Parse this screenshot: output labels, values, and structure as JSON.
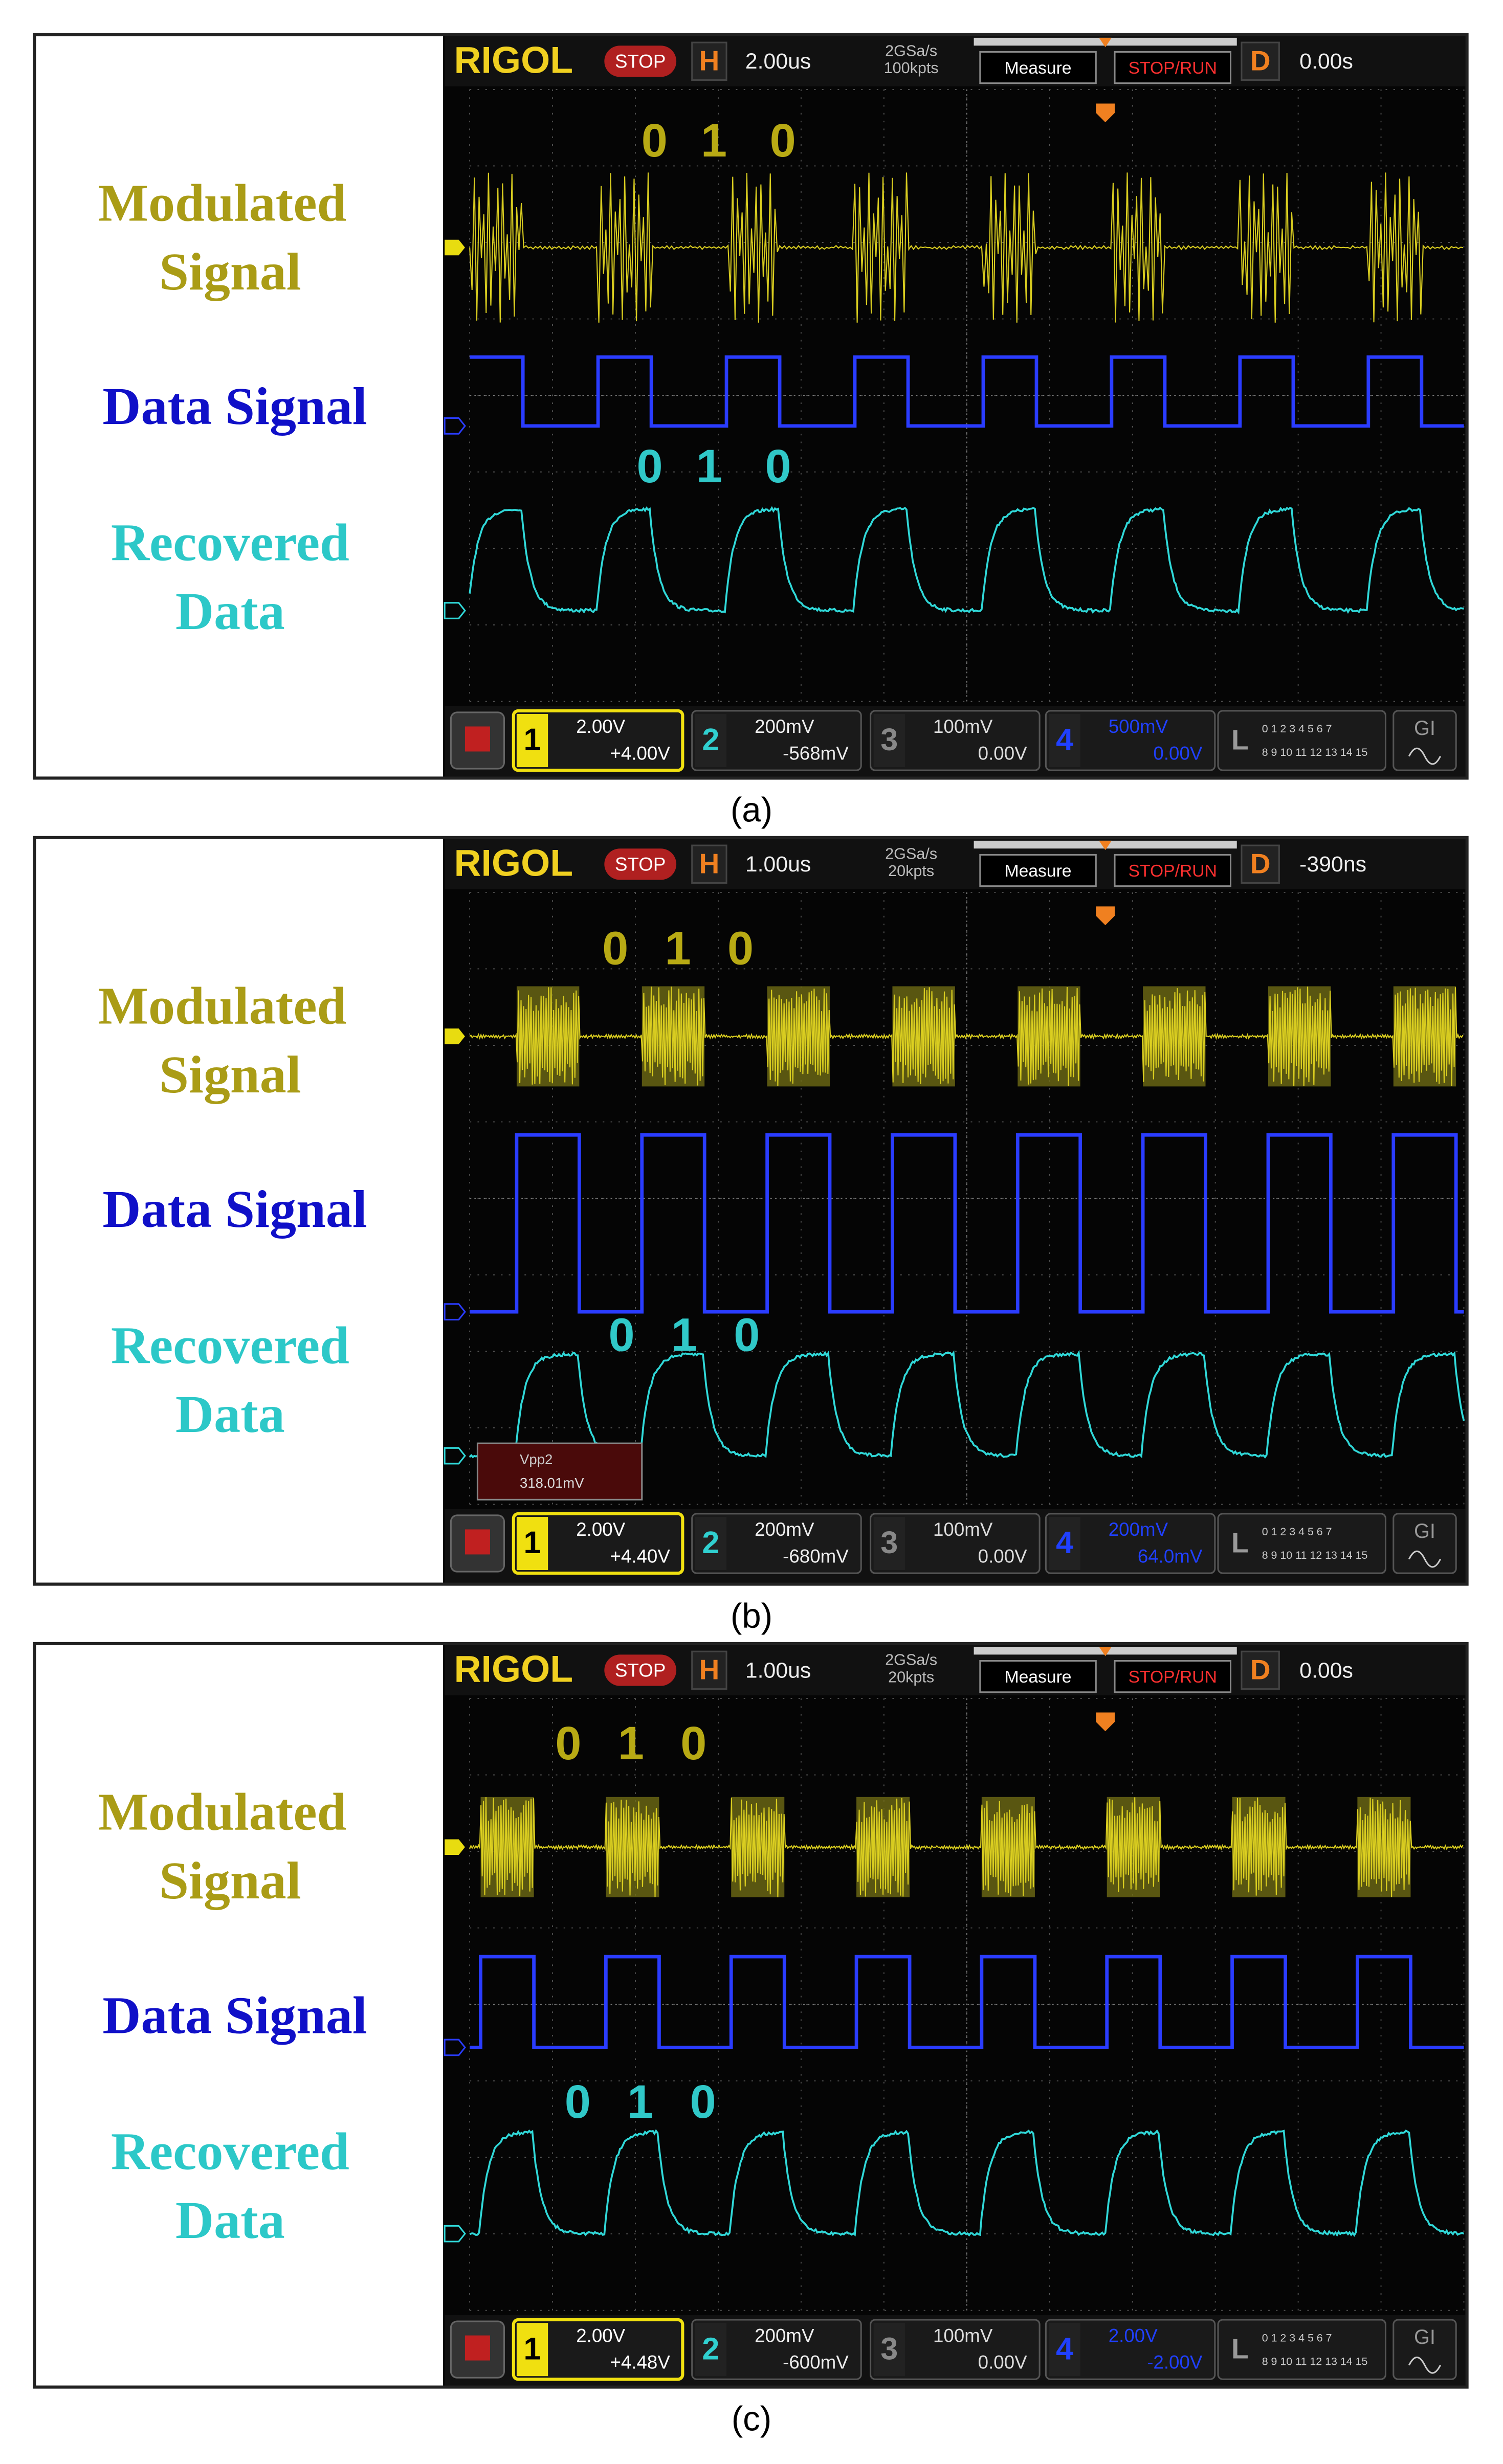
{
  "panels": [
    {
      "caption": "(a)",
      "labels": {
        "modulated": [
          "Modulated",
          "Signal"
        ],
        "data": "Data Signal",
        "recovered": [
          "Recovered",
          "Data"
        ]
      },
      "scope": {
        "brand": "RIGOL",
        "status": "STOP",
        "h_key": "H",
        "timebase": "2.00us",
        "rate": "2GSa/s",
        "points": "100kpts",
        "measure": "Measure",
        "run": "STOP/RUN",
        "d_key": "D",
        "delay": "0.00s",
        "channels": [
          {
            "num": "1",
            "scale": "2.00V",
            "offset": "+4.00V"
          },
          {
            "num": "2",
            "scale": "200mV",
            "offset": "-568mV"
          },
          {
            "num": "3",
            "scale": "100mV",
            "offset": "0.00V"
          },
          {
            "num": "4",
            "scale": "500mV",
            "offset": "0.00V"
          }
        ],
        "logic": "L",
        "logic_bits": [
          "0 1 2 3  4 5 6 7",
          "8 9 10 11 12 13 14 15"
        ],
        "menu": "GI"
      },
      "bits_top": [
        "0",
        "1",
        "0"
      ],
      "bits_bottom": [
        "0",
        "1",
        "0"
      ]
    },
    {
      "caption": "(b)",
      "labels": {
        "modulated": [
          "Modulated",
          "Signal"
        ],
        "data": "Data Signal",
        "recovered": [
          "Recovered",
          "Data"
        ]
      },
      "scope": {
        "brand": "RIGOL",
        "status": "STOP",
        "h_key": "H",
        "timebase": "1.00us",
        "rate": "2GSa/s",
        "points": "20kpts",
        "measure": "Measure",
        "run": "STOP/RUN",
        "d_key": "D",
        "delay": "-390ns",
        "channels": [
          {
            "num": "1",
            "scale": "2.00V",
            "offset": "+4.40V"
          },
          {
            "num": "2",
            "scale": "200mV",
            "offset": "-680mV"
          },
          {
            "num": "3",
            "scale": "100mV",
            "offset": "0.00V"
          },
          {
            "num": "4",
            "scale": "200mV",
            "offset": "64.0mV"
          }
        ],
        "logic": "L",
        "logic_bits": [
          "0 1 2 3  4 5 6 7",
          "8 9 10 11 12 13 14 15"
        ],
        "menu": "GI",
        "measure_box": {
          "name": "Vpp2",
          "value": "318.01mV"
        }
      },
      "bits_top": [
        "0",
        "1",
        "0"
      ],
      "bits_bottom": [
        "0",
        "1",
        "0"
      ]
    },
    {
      "caption": "(c)",
      "labels": {
        "modulated": [
          "Modulated",
          "Signal"
        ],
        "data": "Data Signal",
        "recovered": [
          "Recovered",
          "Data"
        ]
      },
      "scope": {
        "brand": "RIGOL",
        "status": "STOP",
        "h_key": "H",
        "timebase": "1.00us",
        "rate": "2GSa/s",
        "points": "20kpts",
        "measure": "Measure",
        "run": "STOP/RUN",
        "d_key": "D",
        "delay": "0.00s",
        "channels": [
          {
            "num": "1",
            "scale": "2.00V",
            "offset": "+4.48V"
          },
          {
            "num": "2",
            "scale": "200mV",
            "offset": "-600mV"
          },
          {
            "num": "3",
            "scale": "100mV",
            "offset": "0.00V"
          },
          {
            "num": "4",
            "scale": "2.00V",
            "offset": "-2.00V"
          }
        ],
        "logic": "L",
        "logic_bits": [
          "0 1 2 3  4 5 6 7",
          "8 9 10 11 12 13 14 15"
        ],
        "menu": "GI"
      },
      "bits_top": [
        "0",
        "1",
        "0"
      ],
      "bits_bottom": [
        "0",
        "1",
        "0"
      ]
    }
  ]
}
